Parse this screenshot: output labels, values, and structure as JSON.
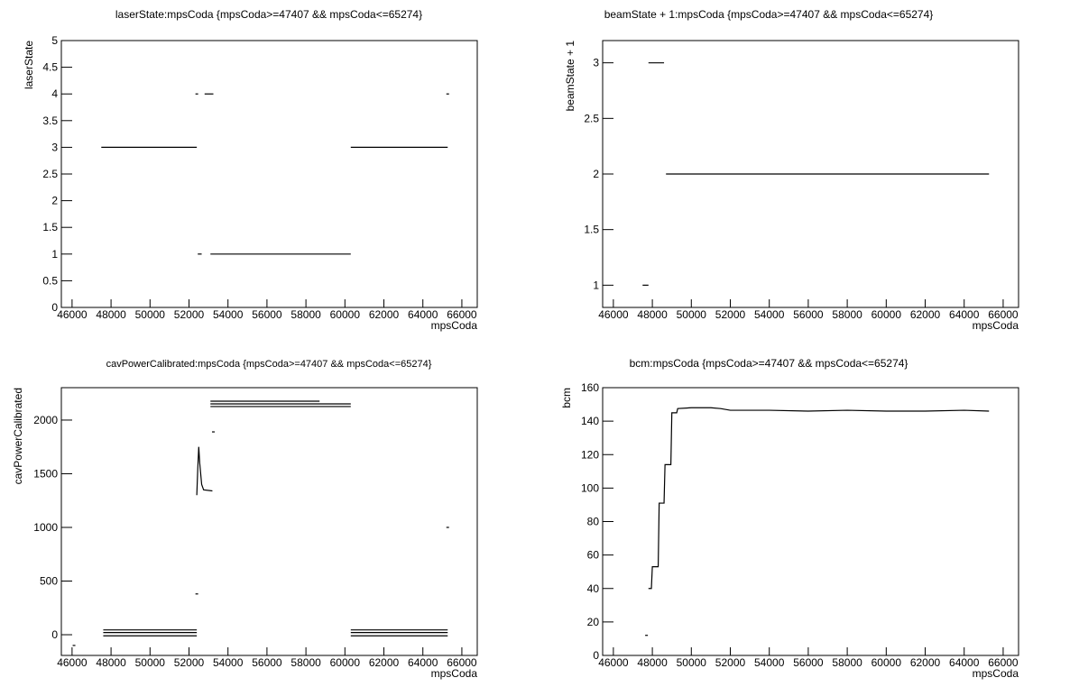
{
  "chart_data": [
    {
      "type": "line",
      "title": "laserState:mpsCoda {mpsCoda>=47407 && mpsCoda<=65274}",
      "x_label": "mpsCoda",
      "y_label": "laserState",
      "xlim": [
        45450,
        66790
      ],
      "xticks": [
        46000,
        48000,
        50000,
        52000,
        54000,
        56000,
        58000,
        60000,
        62000,
        64000,
        66000
      ],
      "ylim": [
        0,
        5
      ],
      "yticks": [
        0,
        0.5,
        1,
        1.5,
        2,
        2.5,
        3,
        3.5,
        4,
        4.5,
        5
      ],
      "series": [
        {
          "color": "#000000",
          "x": [
            47500,
            52400,
            52400,
            52400,
            52400,
            52450,
            52650,
            52650,
            52800,
            53250,
            53250,
            53100,
            60300,
            60300,
            60300,
            65274,
            65274,
            65274
          ],
          "values": [
            3,
            3,
            null,
            4,
            null,
            1,
            1,
            null,
            4,
            4,
            null,
            1,
            1,
            null,
            3,
            3,
            null,
            4
          ]
        }
      ]
    },
    {
      "type": "line",
      "title": "beamState + 1:mpsCoda {mpsCoda>=47407 && mpsCoda<=65274}",
      "x_label": "mpsCoda",
      "y_label": "beamState + 1",
      "xlim": [
        45450,
        66790
      ],
      "xticks": [
        46000,
        48000,
        50000,
        52000,
        54000,
        56000,
        58000,
        60000,
        62000,
        64000,
        66000
      ],
      "ylim": [
        0.8,
        3.2
      ],
      "yticks": [
        1,
        1.5,
        2,
        2.5,
        3
      ],
      "series": [
        {
          "color": "#000000",
          "x": [
            47500,
            47800,
            47800,
            47800,
            48600,
            48600,
            48700,
            65274
          ],
          "values": [
            1,
            1,
            null,
            3,
            3,
            null,
            2,
            2
          ]
        }
      ]
    },
    {
      "type": "line",
      "title": "cavPowerCalibrated:mpsCoda {mpsCoda>=47407 && mpsCoda<=65274}",
      "x_label": "mpsCoda",
      "y_label": "cavPowerCalibrated",
      "xlim": [
        45450,
        66790
      ],
      "xticks": [
        46000,
        48000,
        50000,
        52000,
        54000,
        56000,
        58000,
        60000,
        62000,
        64000,
        66000
      ],
      "ylim": [
        -193,
        2302
      ],
      "yticks": [
        0,
        500,
        1000,
        1500,
        2000
      ],
      "series": [
        {
          "color": "#000000",
          "x": [
            47600,
            52400,
            52400,
            47600,
            52400,
            52400,
            47600,
            52400,
            52400,
            60300,
            65274,
            65274,
            60300,
            65274,
            65274,
            60300,
            65274,
            65274,
            53100,
            58700,
            58700,
            53100,
            60300,
            60300,
            53100,
            60300,
            60300,
            52400,
            52450,
            52500,
            52550,
            52650,
            52750,
            53200,
            53200,
            52400,
            52400,
            53250,
            53250,
            65274,
            65274,
            46100
          ],
          "values": [
            45,
            45,
            null,
            20,
            20,
            null,
            -10,
            -10,
            null,
            45,
            45,
            null,
            20,
            20,
            null,
            -10,
            -10,
            null,
            2176,
            2176,
            null,
            2151,
            2151,
            null,
            2126,
            2126,
            null,
            1300,
            1550,
            1750,
            1600,
            1400,
            1350,
            1340,
            null,
            380,
            null,
            1890,
            null,
            1000,
            null,
            -100
          ]
        }
      ]
    },
    {
      "type": "line",
      "title": "bcm:mpsCoda {mpsCoda>=47407 && mpsCoda<=65274}",
      "x_label": "mpsCoda",
      "y_label": "bcm",
      "xlim": [
        45450,
        66790
      ],
      "xticks": [
        46000,
        48000,
        50000,
        52000,
        54000,
        56000,
        58000,
        60000,
        62000,
        64000,
        66000
      ],
      "ylim": [
        0,
        160
      ],
      "yticks": [
        0,
        20,
        40,
        60,
        80,
        100,
        120,
        140,
        160
      ],
      "series": [
        {
          "color": "#000000",
          "x": [
            47700,
            47700,
            47800,
            47950,
            48000,
            48300,
            48350,
            48600,
            48650,
            48950,
            49000,
            49250,
            49300,
            50000,
            51000,
            51500,
            52000,
            54000,
            56000,
            58000,
            60000,
            62000,
            64000,
            65274
          ],
          "values": [
            12,
            null,
            40,
            40,
            53,
            53,
            91,
            91,
            114,
            114,
            145,
            145,
            147.5,
            148,
            148,
            147.5,
            146.5,
            146.5,
            146,
            146.5,
            146,
            146,
            146.5,
            146
          ]
        }
      ]
    }
  ]
}
